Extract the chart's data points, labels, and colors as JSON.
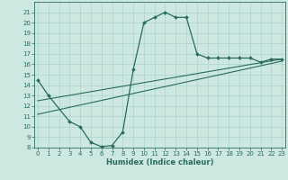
{
  "xlabel": "Humidex (Indice chaleur)",
  "bg_color": "#cce8e0",
  "line_color": "#2a6b5a",
  "grid_color": "#aad4cc",
  "curve1_x": [
    0,
    1,
    3,
    4,
    5,
    6,
    7,
    8,
    9,
    10,
    11,
    12,
    13,
    14,
    15,
    16,
    17,
    18,
    19,
    20,
    21,
    22,
    23
  ],
  "curve1_y": [
    14.5,
    13.0,
    10.5,
    10.0,
    8.5,
    8.1,
    8.2,
    9.5,
    15.5,
    20.0,
    20.5,
    21.0,
    20.5,
    20.5,
    17.0,
    16.6,
    16.6,
    16.6,
    16.6,
    16.6,
    16.2,
    16.5,
    16.5
  ],
  "line1_x": [
    0,
    23
  ],
  "line1_y": [
    12.5,
    16.5
  ],
  "line2_x": [
    0,
    23
  ],
  "line2_y": [
    11.2,
    16.3
  ],
  "ylim": [
    8,
    22
  ],
  "xlim": [
    -0.3,
    23.3
  ],
  "yticks": [
    8,
    9,
    10,
    11,
    12,
    13,
    14,
    15,
    16,
    17,
    18,
    19,
    20,
    21
  ],
  "xticks": [
    0,
    1,
    2,
    3,
    4,
    5,
    6,
    7,
    8,
    9,
    10,
    11,
    12,
    13,
    14,
    15,
    16,
    17,
    18,
    19,
    20,
    21,
    22,
    23
  ],
  "tick_fontsize": 5,
  "xlabel_fontsize": 6
}
